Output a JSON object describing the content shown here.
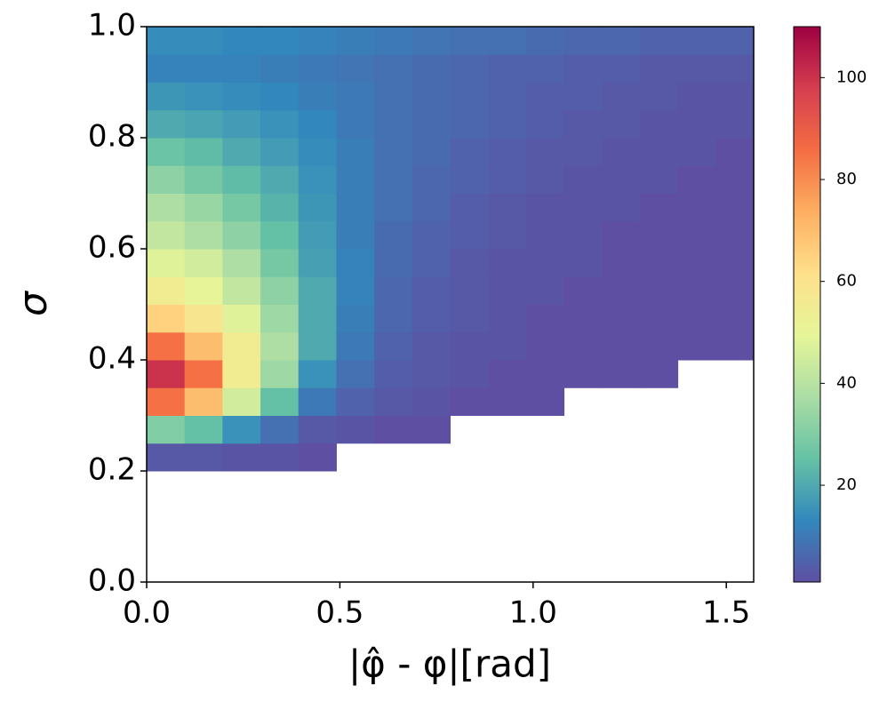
{
  "chart_data": {
    "type": "heatmap",
    "x_label": "|φ̂ - φ|[rad]",
    "y_label": "σ",
    "xlim": [
      0,
      1.5708
    ],
    "ylim": [
      0,
      1
    ],
    "xticks": [
      {
        "value": 0,
        "label": "0.0"
      },
      {
        "value": 0.5,
        "label": "0.5"
      },
      {
        "value": 1,
        "label": "1.0"
      },
      {
        "value": 1.5,
        "label": "1.5"
      }
    ],
    "yticks": [
      {
        "value": 0,
        "label": "0.0"
      },
      {
        "value": 0.2,
        "label": "0.2"
      },
      {
        "value": 0.4,
        "label": "0.4"
      },
      {
        "value": 0.6,
        "label": "0.6"
      },
      {
        "value": 0.8,
        "label": "0.8"
      },
      {
        "value": 1,
        "label": "1.0"
      }
    ],
    "xbins": [
      0,
      0.0982,
      0.1963,
      0.2945,
      0.3927,
      0.4909,
      0.589,
      0.6872,
      0.7854,
      0.8836,
      0.9817,
      1.0799,
      1.1781,
      1.2763,
      1.3744,
      1.4726,
      1.5708
    ],
    "ybins": [
      0,
      0.05,
      0.1,
      0.15,
      0.2,
      0.25,
      0.3,
      0.35,
      0.4,
      0.45,
      0.5,
      0.55,
      0.6,
      0.65,
      0.7,
      0.75,
      0.8,
      0.85,
      0.9,
      0.95,
      1
    ],
    "z": [
      [
        null,
        null,
        null,
        null,
        null,
        null,
        null,
        null,
        null,
        null,
        null,
        null,
        null,
        null,
        null,
        null
      ],
      [
        null,
        null,
        null,
        null,
        null,
        null,
        null,
        null,
        null,
        null,
        null,
        null,
        null,
        null,
        null,
        null
      ],
      [
        null,
        null,
        null,
        null,
        null,
        null,
        null,
        null,
        null,
        null,
        null,
        null,
        null,
        null,
        null,
        null
      ],
      [
        null,
        null,
        null,
        null,
        null,
        null,
        null,
        null,
        null,
        null,
        null,
        null,
        null,
        null,
        null,
        null
      ],
      [
        3,
        3,
        2,
        2,
        1,
        null,
        null,
        null,
        null,
        null,
        null,
        null,
        null,
        null,
        null,
        null
      ],
      [
        30,
        25,
        15,
        8,
        3,
        2,
        1,
        1,
        null,
        null,
        null,
        null,
        null,
        null,
        null,
        null
      ],
      [
        85,
        70,
        45,
        25,
        10,
        5,
        3,
        2,
        1,
        1,
        1,
        null,
        null,
        null,
        null,
        null
      ],
      [
        100,
        85,
        55,
        35,
        15,
        8,
        4,
        3,
        2,
        1,
        1,
        1,
        1,
        1,
        null,
        null
      ],
      [
        85,
        70,
        55,
        38,
        20,
        10,
        5,
        3,
        2,
        2,
        1,
        1,
        1,
        1,
        1,
        1
      ],
      [
        65,
        58,
        48,
        35,
        20,
        11,
        6,
        4,
        3,
        2,
        1,
        1,
        1,
        1,
        1,
        1
      ],
      [
        55,
        50,
        42,
        32,
        20,
        12,
        6,
        4,
        3,
        2,
        2,
        1,
        1,
        1,
        1,
        1
      ],
      [
        48,
        45,
        38,
        28,
        18,
        12,
        7,
        5,
        3,
        2,
        2,
        2,
        1,
        1,
        1,
        1
      ],
      [
        42,
        38,
        32,
        25,
        17,
        11,
        7,
        5,
        4,
        3,
        2,
        2,
        1,
        1,
        1,
        1
      ],
      [
        38,
        34,
        28,
        22,
        16,
        11,
        8,
        6,
        4,
        3,
        2,
        2,
        2,
        1,
        1,
        1
      ],
      [
        32,
        28,
        24,
        20,
        15,
        11,
        8,
        6,
        5,
        4,
        3,
        2,
        2,
        2,
        1,
        1
      ],
      [
        26,
        24,
        20,
        17,
        14,
        11,
        8,
        7,
        5,
        4,
        3,
        3,
        2,
        2,
        2,
        1
      ],
      [
        20,
        19,
        17,
        15,
        13,
        10,
        8,
        7,
        6,
        5,
        4,
        3,
        3,
        2,
        2,
        2
      ],
      [
        16,
        15,
        14,
        13,
        11,
        10,
        8,
        7,
        6,
        5,
        4,
        4,
        3,
        3,
        2,
        2
      ],
      [
        12,
        12,
        12,
        11,
        10,
        9,
        8,
        7,
        6,
        5,
        5,
        4,
        4,
        3,
        3,
        3
      ],
      [
        14,
        14,
        13,
        13,
        12,
        11,
        10,
        9,
        8,
        8,
        7,
        6,
        6,
        5,
        5,
        5
      ]
    ],
    "zlim": [
      1,
      110
    ],
    "zticks": [
      20,
      40,
      60,
      80,
      100
    ],
    "colorscale": [
      "#5e4fa2",
      "#3288bd",
      "#66c2a5",
      "#abdda4",
      "#e6f598",
      "#fee08b",
      "#fdae61",
      "#f46d43",
      "#d53e4f",
      "#9e0142"
    ]
  }
}
